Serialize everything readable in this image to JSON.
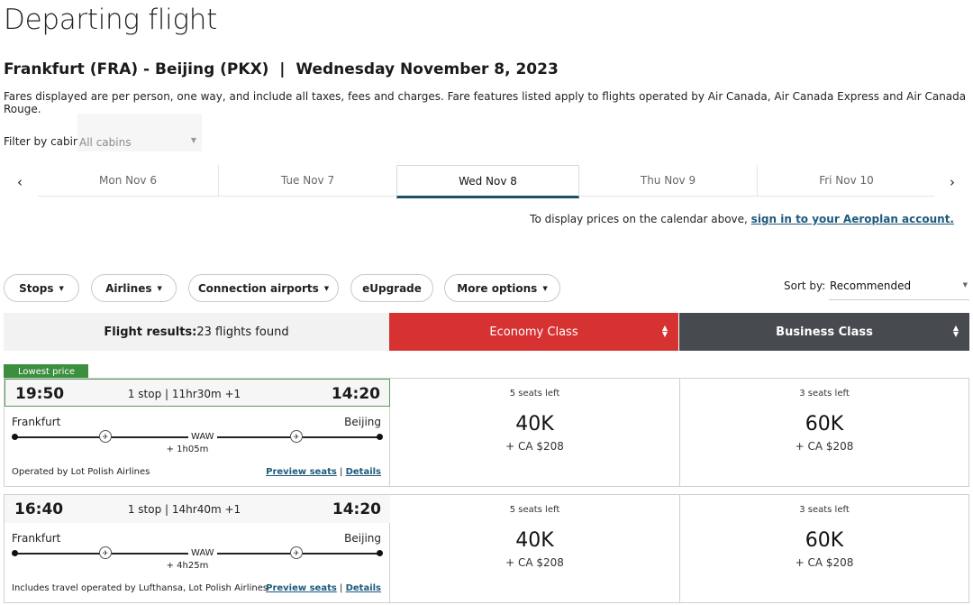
{
  "page": {
    "title": "Departing flight",
    "route_heading": "Frankfurt (FRA) - Beijing (PKX)  |  Wednesday November 8, 2023",
    "fare_note": "Fares displayed are per person, one way, and include all taxes, fees and charges. Fare features listed apply to flights operated by Air Canada, Air Canada Express and Air Canada Rouge."
  },
  "filter": {
    "label": "Filter by cabin",
    "value": "All cabins"
  },
  "dates": {
    "prev": "‹",
    "next": "›",
    "tabs": [
      {
        "label": "Mon Nov 6"
      },
      {
        "label": "Tue Nov 7"
      },
      {
        "label": "Wed Nov 8"
      },
      {
        "label": "Thu Nov 9"
      },
      {
        "label": "Fri Nov 10"
      }
    ],
    "selected_index": 2
  },
  "signin": {
    "text": "To display prices on the calendar above, ",
    "link": "sign in to your Aeroplan account."
  },
  "filters": {
    "stops": "Stops",
    "airlines": "Airlines",
    "connection": "Connection airports",
    "eupgrade": "eUpgrade",
    "more": "More options"
  },
  "sort": {
    "label": "Sort by:",
    "value": "Recommended"
  },
  "results": {
    "label": "Flight results:",
    "count": "23 flights found"
  },
  "classes": {
    "economy": "Economy Class",
    "business": "Business Class"
  },
  "badge": "Lowest price",
  "flights": [
    {
      "dep": "19:50",
      "arr": "14:20",
      "stops": "1 stop | 11hr30m +1",
      "origin": "Frankfurt",
      "dest": "Beijing",
      "via": "WAW",
      "layover": "+ 1h05m",
      "operated": "Operated by Lot Polish Airlines",
      "preview": "Preview seats",
      "sep": "|",
      "details": "Details",
      "eco": {
        "seats": "5 seats left",
        "points": "40K",
        "cash": "+ CA $208"
      },
      "bus": {
        "seats": "3 seats left",
        "points": "60K",
        "cash": "+ CA $208"
      }
    },
    {
      "dep": "16:40",
      "arr": "14:20",
      "stops": "1 stop | 14hr40m +1",
      "origin": "Frankfurt",
      "dest": "Beijing",
      "via": "WAW",
      "layover": "+ 4h25m",
      "operated": "Includes travel operated by Lufthansa, Lot Polish Airlines",
      "preview": "Preview seats",
      "sep": "|",
      "details": "Details",
      "eco": {
        "seats": "5 seats left",
        "points": "40K",
        "cash": "+ CA $208"
      },
      "bus": {
        "seats": "3 seats left",
        "points": "60K",
        "cash": "+ CA $208"
      }
    }
  ],
  "icons": {
    "plane": "airline-logo-icon",
    "caret": "caret-down-icon",
    "sorter": "sort-icon"
  }
}
